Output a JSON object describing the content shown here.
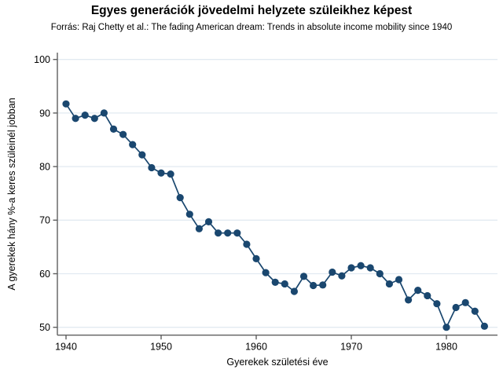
{
  "chart_data": {
    "type": "line",
    "title": "Egyes generációk jövedelmi helyzete szüleikhez képest",
    "subtitle": "Forrás: Raj Chetty et al.: The fading American dream: Trends in absolute income mobility since 1940",
    "xlabel": "Gyerekek születési éve",
    "ylabel": "A gyerekek hány %-a keres szüleinél jobban",
    "x": [
      1940,
      1941,
      1942,
      1943,
      1944,
      1945,
      1946,
      1947,
      1948,
      1949,
      1950,
      1951,
      1952,
      1953,
      1954,
      1955,
      1956,
      1957,
      1958,
      1959,
      1960,
      1961,
      1962,
      1963,
      1964,
      1965,
      1966,
      1967,
      1968,
      1969,
      1970,
      1971,
      1972,
      1973,
      1974,
      1975,
      1976,
      1977,
      1978,
      1979,
      1980,
      1981,
      1982,
      1983,
      1984
    ],
    "values": [
      91.7,
      89.0,
      89.6,
      89.0,
      90.0,
      87.0,
      86.0,
      84.1,
      82.2,
      79.8,
      78.8,
      78.6,
      74.2,
      71.1,
      68.4,
      69.7,
      67.6,
      67.6,
      67.6,
      65.5,
      62.8,
      60.2,
      58.4,
      58.1,
      56.7,
      59.5,
      57.8,
      57.9,
      60.3,
      59.6,
      61.1,
      61.5,
      61.1,
      60.0,
      58.1,
      58.9,
      55.1,
      56.9,
      55.9,
      54.4,
      50.0,
      53.7,
      54.6,
      53.0,
      50.2
    ],
    "ylim": [
      50,
      100
    ],
    "xlim": [
      1940,
      1984
    ],
    "y_ticks": [
      50,
      60,
      70,
      80,
      90,
      100
    ],
    "x_ticks": [
      1940,
      1950,
      1960,
      1970,
      1980
    ],
    "grid": "horizontal-only",
    "legend": "none",
    "marker": "filled-circle",
    "colors": {
      "series": "#1a476f",
      "grid": "#e2eaf1",
      "axis": "#5f5f5f",
      "text": "#000000",
      "background": "#ffffff"
    }
  }
}
